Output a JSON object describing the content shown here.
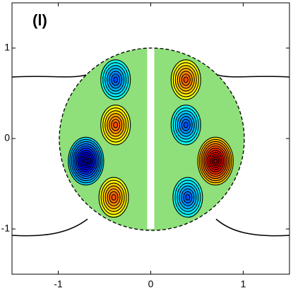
{
  "chart_data": {
    "type": "contour",
    "title": "(l)",
    "x": [
      -0.38,
      0.38,
      -0.38,
      0.38,
      -0.7,
      0.7,
      -0.4,
      0.4
    ],
    "y": [
      0.65,
      0.65,
      0.15,
      0.15,
      -0.25,
      -0.25,
      -0.65,
      -0.65
    ],
    "values": [
      -0.6,
      0.6,
      0.6,
      -0.6,
      -1,
      1,
      0.6,
      -0.6
    ],
    "xlim": [
      -1.5,
      1.5
    ],
    "ylim": [
      -1.5,
      1.5
    ],
    "xticks": [
      -1,
      0,
      1
    ],
    "yticks": [
      -1,
      0,
      1
    ]
  }
}
